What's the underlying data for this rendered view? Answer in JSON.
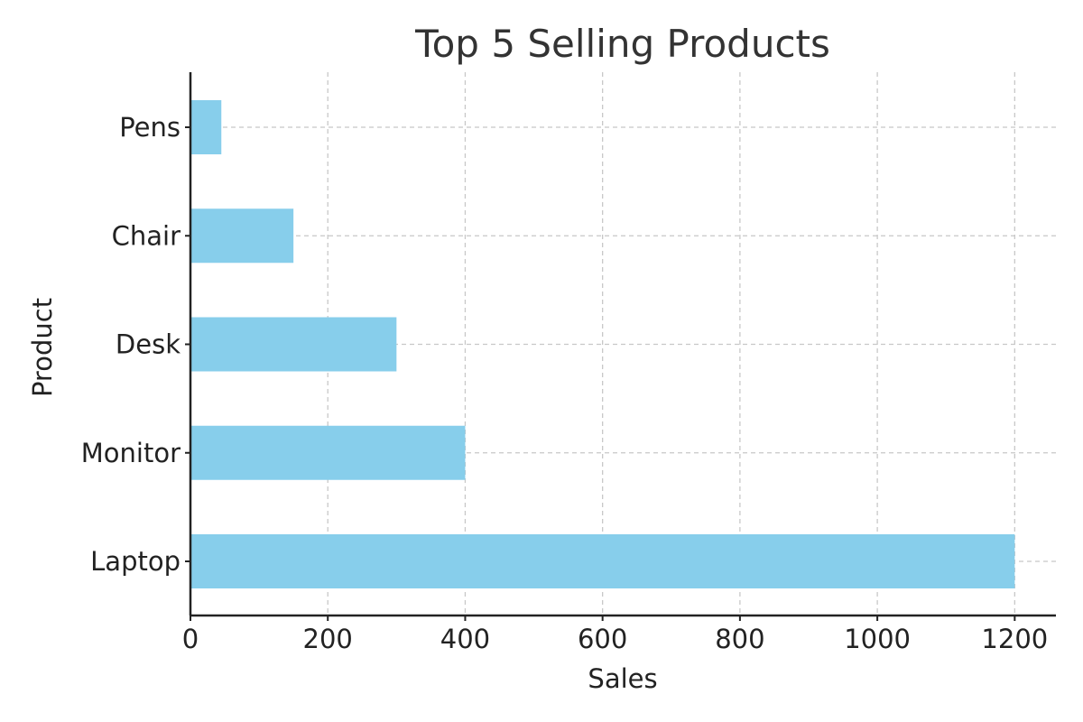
{
  "chart_data": {
    "type": "bar",
    "orientation": "horizontal",
    "title": "Top 5 Selling Products",
    "xlabel": "Sales",
    "ylabel": "Product",
    "categories": [
      "Laptop",
      "Monitor",
      "Desk",
      "Chair",
      "Pens"
    ],
    "values": [
      1200,
      400,
      300,
      150,
      45
    ],
    "xlim": [
      0,
      1260
    ],
    "xticks": [
      0,
      200,
      400,
      600,
      800,
      1000,
      1200
    ],
    "grid": true,
    "legend": "none",
    "colors": {
      "bar": "#87CEEB",
      "axis": "#222222",
      "grid": "#c8c8c8",
      "title": "#333333"
    }
  }
}
